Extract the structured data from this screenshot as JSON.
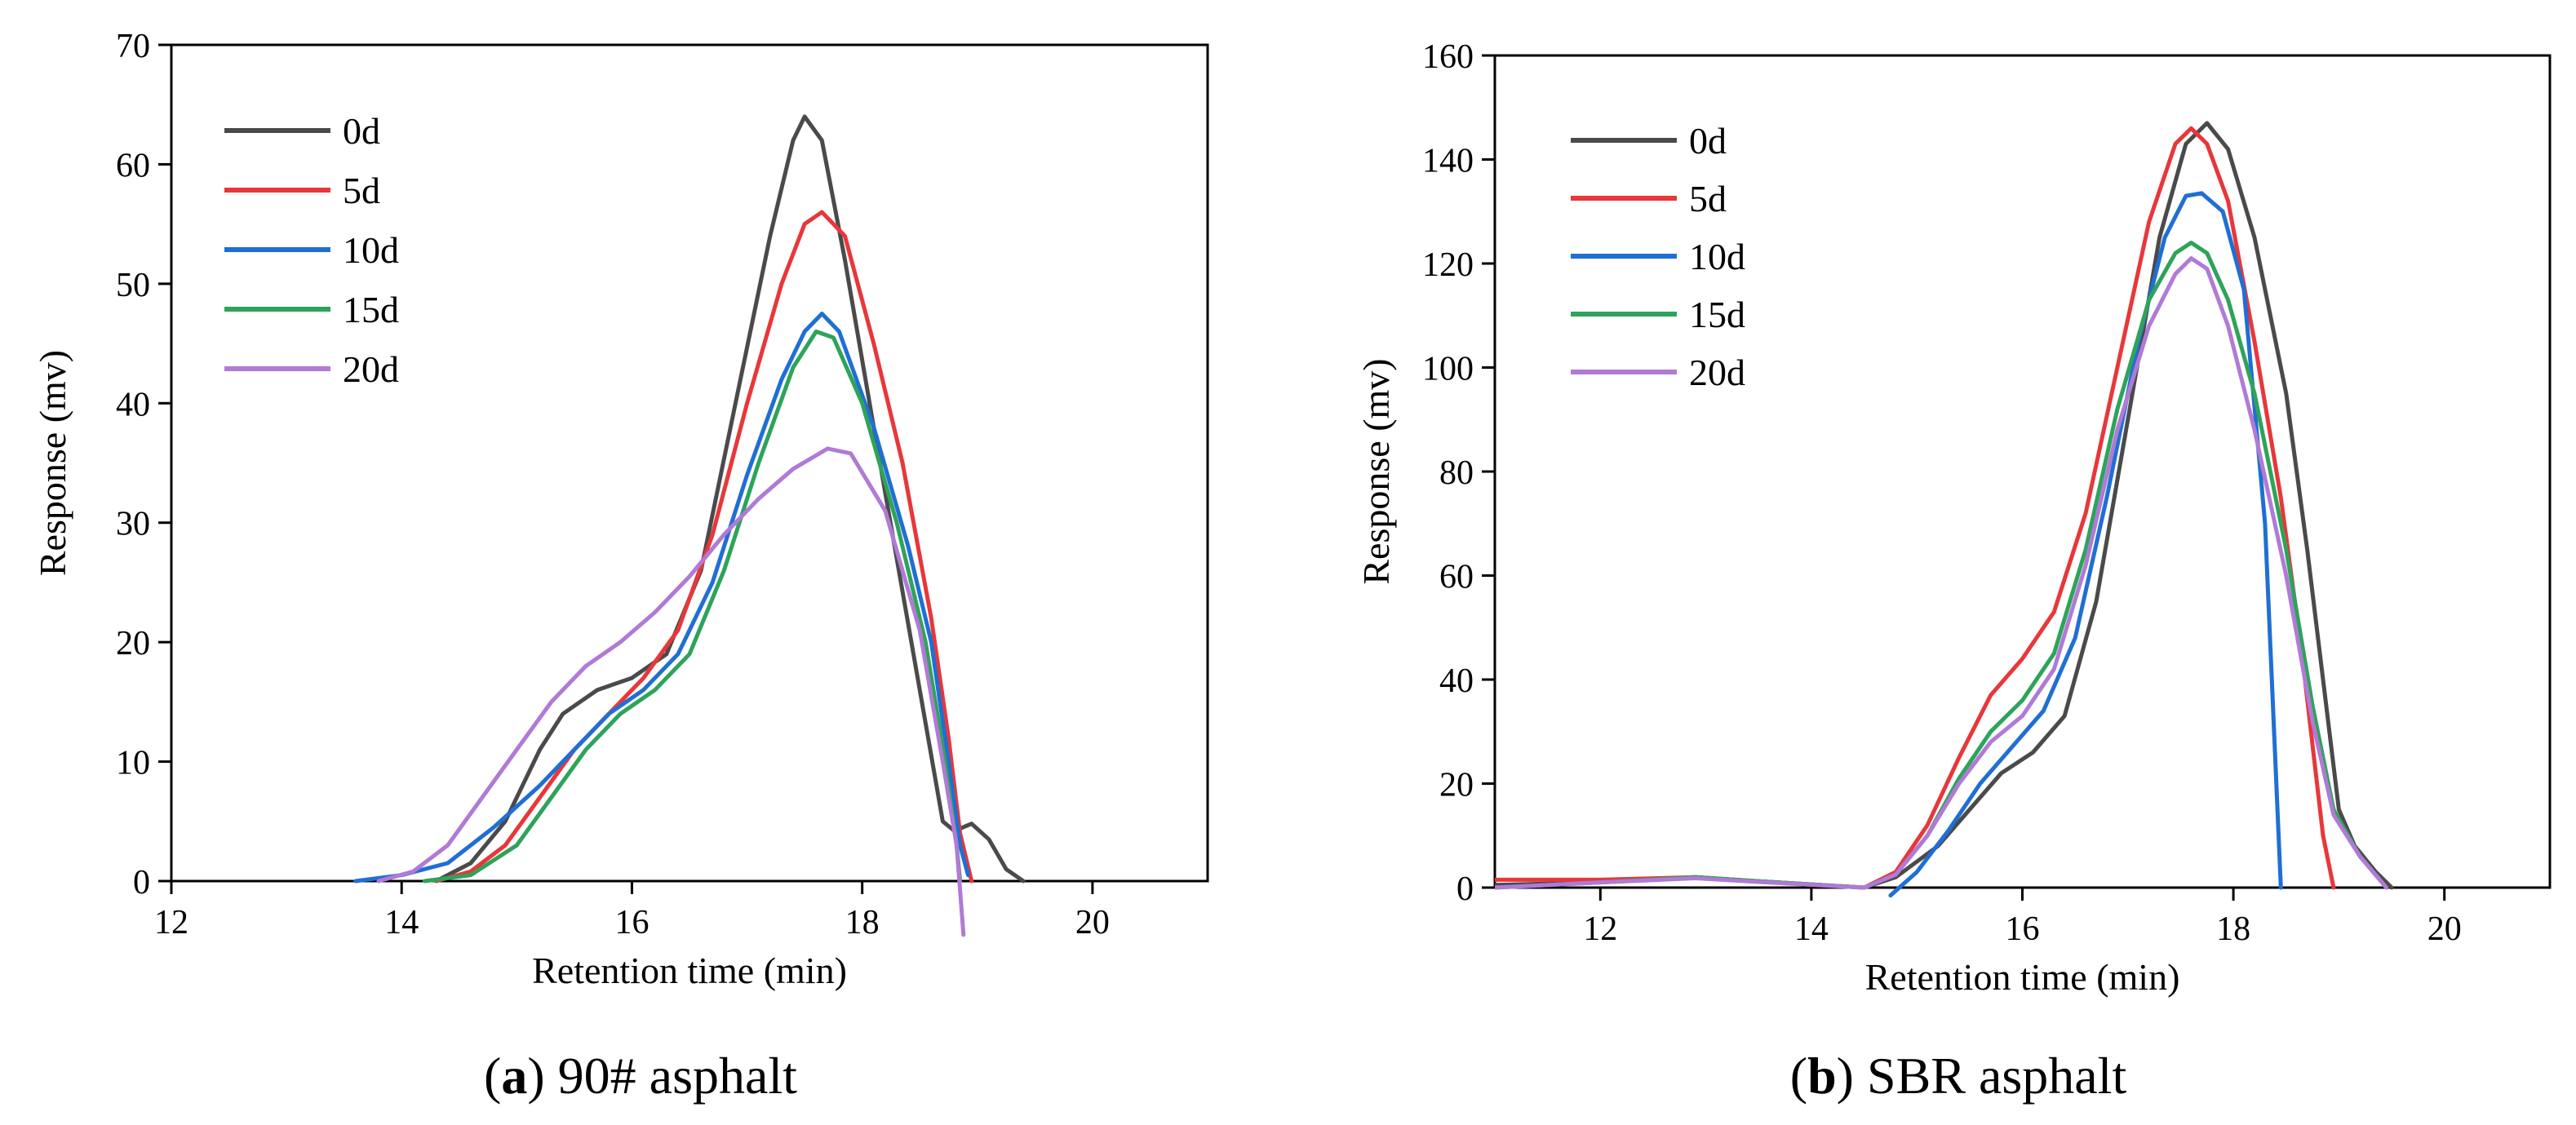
{
  "chart_data": [
    {
      "type": "line",
      "caption_label": "a",
      "caption_text": "90# asphalt",
      "xlabel": "Retention time (min)",
      "ylabel": "Response (mv)",
      "xlim": [
        12,
        21
      ],
      "ylim": [
        0,
        70
      ],
      "xticks": [
        12,
        14,
        16,
        18,
        20
      ],
      "yticks": [
        0,
        10,
        20,
        30,
        40,
        50,
        60,
        70
      ],
      "legend_position": "top-left",
      "series": [
        {
          "name": "0d",
          "color": "#4a4a4a",
          "points": [
            [
              14.3,
              0
            ],
            [
              14.6,
              1.5
            ],
            [
              14.9,
              5
            ],
            [
              15.2,
              11
            ],
            [
              15.4,
              14
            ],
            [
              15.7,
              16
            ],
            [
              16.0,
              17
            ],
            [
              16.3,
              19
            ],
            [
              16.6,
              26
            ],
            [
              16.9,
              40
            ],
            [
              17.2,
              54
            ],
            [
              17.4,
              62
            ],
            [
              17.5,
              64
            ],
            [
              17.65,
              62
            ],
            [
              17.85,
              52
            ],
            [
              18.1,
              38
            ],
            [
              18.3,
              27
            ],
            [
              18.5,
              16
            ],
            [
              18.7,
              5
            ],
            [
              18.8,
              4.2
            ],
            [
              18.95,
              4.8
            ],
            [
              19.1,
              3.5
            ],
            [
              19.25,
              1
            ],
            [
              19.4,
              0
            ]
          ]
        },
        {
          "name": "5d",
          "color": "#e8373a",
          "points": [
            [
              14.3,
              0
            ],
            [
              14.6,
              0.8
            ],
            [
              14.9,
              3
            ],
            [
              15.2,
              7
            ],
            [
              15.5,
              11
            ],
            [
              15.8,
              14
            ],
            [
              16.1,
              17
            ],
            [
              16.4,
              21
            ],
            [
              16.7,
              29
            ],
            [
              17.0,
              40
            ],
            [
              17.3,
              50
            ],
            [
              17.5,
              55
            ],
            [
              17.65,
              56
            ],
            [
              17.85,
              54
            ],
            [
              18.1,
              45
            ],
            [
              18.35,
              35
            ],
            [
              18.6,
              22
            ],
            [
              18.75,
              12
            ],
            [
              18.85,
              4
            ],
            [
              18.95,
              0
            ]
          ]
        },
        {
          "name": "10d",
          "color": "#1f6fd4",
          "points": [
            [
              13.6,
              0
            ],
            [
              14.0,
              0.5
            ],
            [
              14.4,
              1.5
            ],
            [
              14.8,
              4.5
            ],
            [
              15.2,
              8
            ],
            [
              15.5,
              11
            ],
            [
              15.8,
              14
            ],
            [
              16.1,
              16
            ],
            [
              16.4,
              19
            ],
            [
              16.7,
              25
            ],
            [
              17.0,
              34
            ],
            [
              17.3,
              42
            ],
            [
              17.5,
              46
            ],
            [
              17.65,
              47.5
            ],
            [
              17.8,
              46
            ],
            [
              18.1,
              38
            ],
            [
              18.4,
              28
            ],
            [
              18.6,
              20
            ],
            [
              18.75,
              10
            ],
            [
              18.85,
              3
            ],
            [
              18.92,
              0.5
            ]
          ]
        },
        {
          "name": "15d",
          "color": "#2ea35a",
          "points": [
            [
              14.2,
              0
            ],
            [
              14.6,
              0.5
            ],
            [
              15.0,
              3
            ],
            [
              15.3,
              7
            ],
            [
              15.6,
              11
            ],
            [
              15.9,
              14
            ],
            [
              16.2,
              16
            ],
            [
              16.5,
              19
            ],
            [
              16.8,
              26
            ],
            [
              17.1,
              35
            ],
            [
              17.4,
              43
            ],
            [
              17.6,
              46
            ],
            [
              17.75,
              45.5
            ],
            [
              18.0,
              40
            ],
            [
              18.3,
              30
            ],
            [
              18.55,
              20
            ],
            [
              18.72,
              10
            ],
            [
              18.82,
              3
            ],
            [
              18.85,
              0
            ]
          ]
        },
        {
          "name": "20d",
          "color": "#b07ad6",
          "points": [
            [
              13.8,
              0
            ],
            [
              14.1,
              0.8
            ],
            [
              14.4,
              3
            ],
            [
              14.7,
              7
            ],
            [
              15.0,
              11
            ],
            [
              15.3,
              15
            ],
            [
              15.6,
              18
            ],
            [
              15.9,
              20
            ],
            [
              16.2,
              22.5
            ],
            [
              16.5,
              25.5
            ],
            [
              16.8,
              29
            ],
            [
              17.1,
              32
            ],
            [
              17.4,
              34.5
            ],
            [
              17.7,
              36.2
            ],
            [
              17.9,
              35.8
            ],
            [
              18.2,
              31
            ],
            [
              18.5,
              21
            ],
            [
              18.7,
              10
            ],
            [
              18.82,
              3
            ],
            [
              18.88,
              -4.5
            ]
          ]
        }
      ]
    },
    {
      "type": "line",
      "caption_label": "b",
      "caption_text": "SBR asphalt",
      "xlabel": "Retention time (min)",
      "ylabel": "Response (mv)",
      "xlim": [
        11,
        21
      ],
      "ylim": [
        0,
        160
      ],
      "xticks": [
        12,
        14,
        16,
        18,
        20
      ],
      "yticks": [
        0,
        20,
        40,
        60,
        80,
        100,
        120,
        140,
        160
      ],
      "legend_position": "top-left",
      "series": [
        {
          "name": "0d",
          "color": "#4a4a4a",
          "points": [
            [
              11.0,
              0.5
            ],
            [
              12.0,
              1
            ],
            [
              12.9,
              2
            ],
            [
              13.5,
              1.2
            ],
            [
              14.5,
              0
            ],
            [
              14.8,
              2
            ],
            [
              15.2,
              8
            ],
            [
              15.5,
              15
            ],
            [
              15.8,
              22
            ],
            [
              16.1,
              26
            ],
            [
              16.4,
              33
            ],
            [
              16.7,
              55
            ],
            [
              17.0,
              90
            ],
            [
              17.3,
              125
            ],
            [
              17.55,
              143
            ],
            [
              17.75,
              147
            ],
            [
              17.95,
              142
            ],
            [
              18.2,
              125
            ],
            [
              18.5,
              95
            ],
            [
              18.7,
              65
            ],
            [
              18.85,
              40
            ],
            [
              19.0,
              15
            ],
            [
              19.15,
              8
            ],
            [
              19.35,
              3
            ],
            [
              19.5,
              0
            ]
          ]
        },
        {
          "name": "5d",
          "color": "#e8373a",
          "points": [
            [
              11.0,
              1.5
            ],
            [
              12.0,
              1.5
            ],
            [
              12.9,
              2
            ],
            [
              13.5,
              1.2
            ],
            [
              14.5,
              0
            ],
            [
              14.8,
              3
            ],
            [
              15.1,
              12
            ],
            [
              15.4,
              25
            ],
            [
              15.7,
              37
            ],
            [
              16.0,
              44
            ],
            [
              16.3,
              53
            ],
            [
              16.6,
              72
            ],
            [
              16.9,
              100
            ],
            [
              17.2,
              128
            ],
            [
              17.45,
              143
            ],
            [
              17.6,
              146
            ],
            [
              17.75,
              143
            ],
            [
              17.95,
              132
            ],
            [
              18.2,
              105
            ],
            [
              18.45,
              75
            ],
            [
              18.65,
              45
            ],
            [
              18.85,
              10
            ],
            [
              18.95,
              0
            ]
          ]
        },
        {
          "name": "10d",
          "color": "#1f6fd4",
          "points": [
            [
              14.75,
              -1.5
            ],
            [
              15.0,
              3
            ],
            [
              15.3,
              11
            ],
            [
              15.6,
              20
            ],
            [
              15.9,
              27
            ],
            [
              16.2,
              34
            ],
            [
              16.5,
              48
            ],
            [
              16.8,
              75
            ],
            [
              17.1,
              105
            ],
            [
              17.35,
              125
            ],
            [
              17.55,
              133
            ],
            [
              17.7,
              133.5
            ],
            [
              17.9,
              130
            ],
            [
              18.1,
              115
            ],
            [
              18.3,
              70
            ],
            [
              18.45,
              0
            ]
          ]
        },
        {
          "name": "15d",
          "color": "#2ea35a",
          "points": [
            [
              11.0,
              0
            ],
            [
              12.0,
              1
            ],
            [
              12.9,
              2
            ],
            [
              13.5,
              1.2
            ],
            [
              14.5,
              0
            ],
            [
              14.8,
              2.5
            ],
            [
              15.1,
              10
            ],
            [
              15.4,
              21
            ],
            [
              15.7,
              30
            ],
            [
              16.0,
              36
            ],
            [
              16.3,
              45
            ],
            [
              16.6,
              65
            ],
            [
              16.9,
              92
            ],
            [
              17.2,
              113
            ],
            [
              17.45,
              122
            ],
            [
              17.6,
              124
            ],
            [
              17.75,
              122
            ],
            [
              17.95,
              113
            ],
            [
              18.2,
              95
            ],
            [
              18.5,
              65
            ],
            [
              18.75,
              35
            ],
            [
              18.95,
              15
            ],
            [
              19.2,
              6
            ],
            [
              19.45,
              0
            ]
          ]
        },
        {
          "name": "20d",
          "color": "#b07ad6",
          "points": [
            [
              11.0,
              0
            ],
            [
              12.0,
              1
            ],
            [
              12.9,
              1.8
            ],
            [
              13.5,
              1.1
            ],
            [
              14.5,
              0
            ],
            [
              14.8,
              2.5
            ],
            [
              15.1,
              10
            ],
            [
              15.4,
              20
            ],
            [
              15.7,
              28
            ],
            [
              16.0,
              33
            ],
            [
              16.3,
              42
            ],
            [
              16.6,
              62
            ],
            [
              16.9,
              88
            ],
            [
              17.2,
              108
            ],
            [
              17.45,
              118
            ],
            [
              17.6,
              121
            ],
            [
              17.75,
              119
            ],
            [
              17.95,
              108
            ],
            [
              18.2,
              88
            ],
            [
              18.5,
              60
            ],
            [
              18.75,
              32
            ],
            [
              18.95,
              14
            ],
            [
              19.2,
              6
            ],
            [
              19.45,
              0
            ]
          ]
        }
      ]
    }
  ]
}
